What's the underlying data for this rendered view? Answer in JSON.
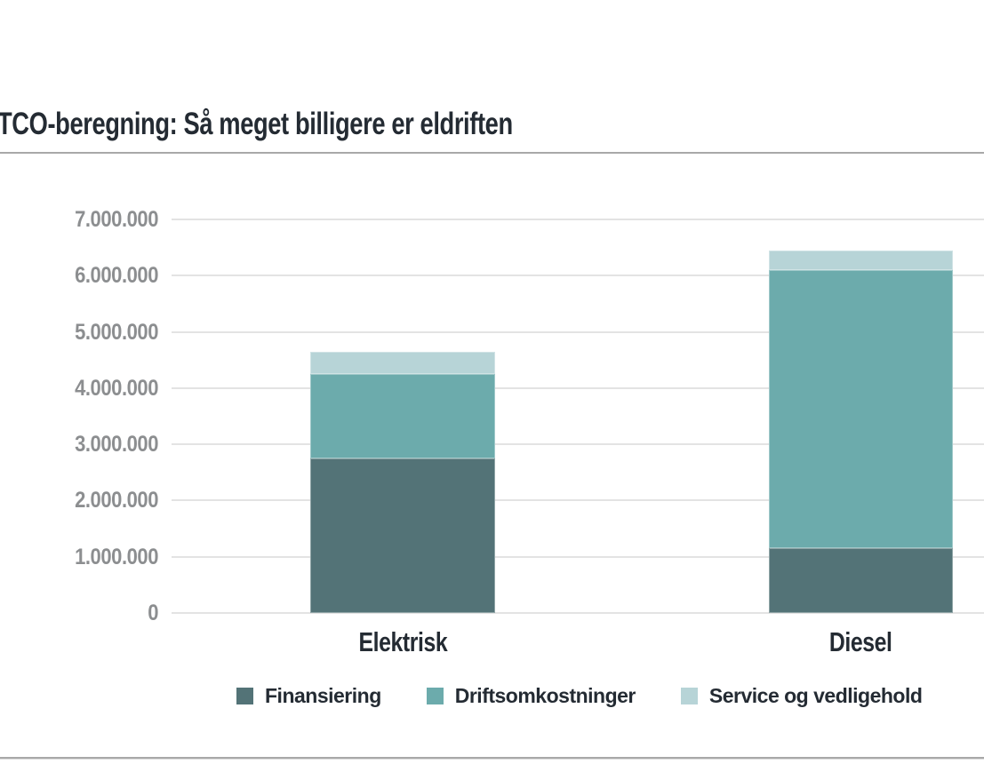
{
  "title": "TCO-beregning: Så meget billigere er eldriften",
  "colors": {
    "title_text": "#242b33",
    "axis_label": "#8c8e90",
    "gridline": "#e3e3e3",
    "divider": "#a9a9a9",
    "background": "#ffffff",
    "finansiering": "#537377",
    "driftsomkostninger": "#6cabac",
    "service_og_vedligehold": "#b7d4d7"
  },
  "chart_data": {
    "type": "bar",
    "stacked": true,
    "title": "TCO-beregning: Så meget billigere er eldriften",
    "xlabel": "",
    "ylabel": "",
    "categories": [
      "Elektrisk",
      "Diesel"
    ],
    "series": [
      {
        "name": "Finansiering",
        "color": "#537377",
        "values": [
          2750000,
          1150000
        ]
      },
      {
        "name": "Driftsomkostninger",
        "color": "#6cabac",
        "values": [
          1500000,
          4950000
        ]
      },
      {
        "name": "Service og vedligehold",
        "color": "#b7d4d7",
        "values": [
          400000,
          350000
        ]
      }
    ],
    "totals": [
      4650000,
      6450000
    ],
    "ylim": [
      0,
      7000000
    ],
    "ytick_step": 1000000,
    "ytick_labels": [
      "0",
      "1.000.000",
      "2.000.000",
      "3.000.000",
      "4.000.000",
      "5.000.000",
      "6.000.000",
      "7.000.000"
    ],
    "grid": true,
    "legend_position": "bottom"
  }
}
